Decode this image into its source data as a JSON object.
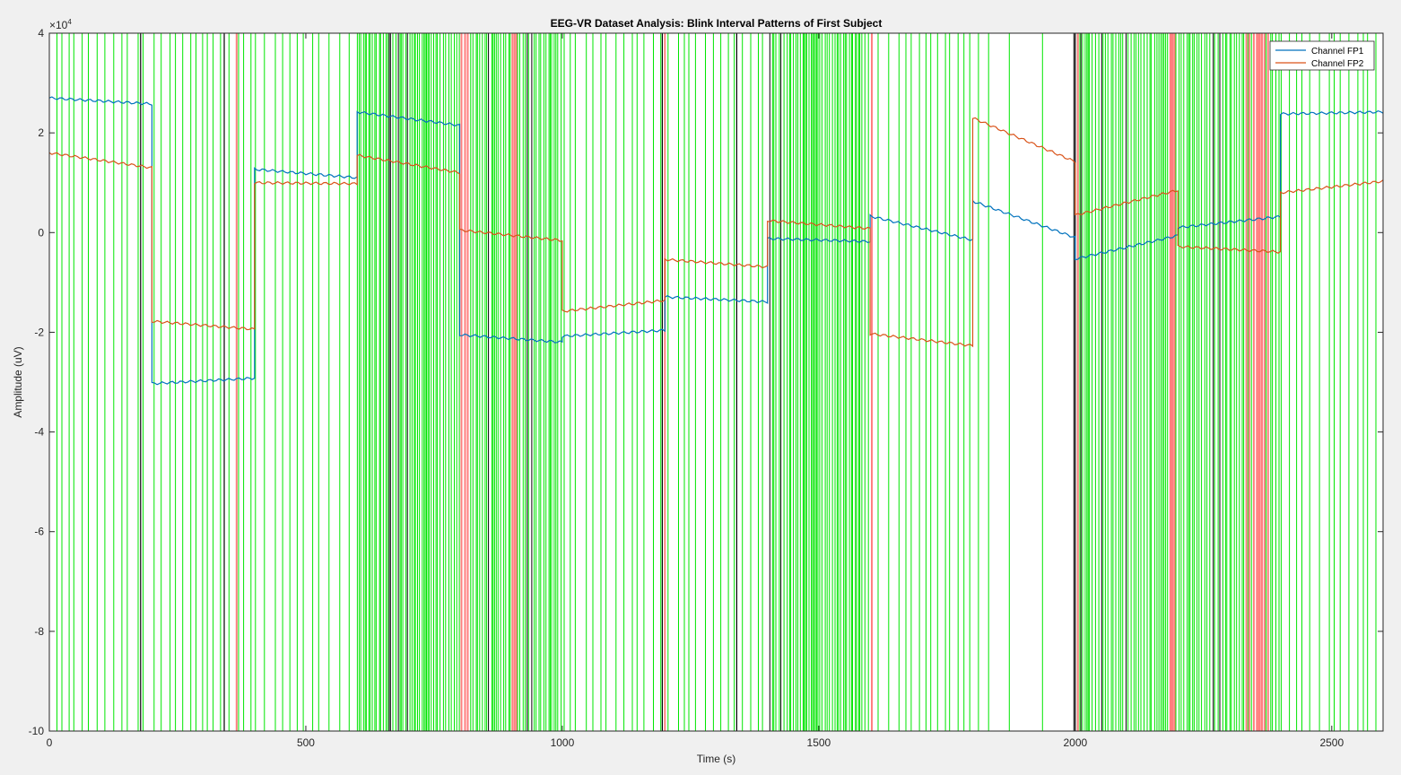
{
  "chart_data": {
    "type": "line",
    "title": "EEG-VR Dataset Analysis: Blink Interval Patterns of First Subject",
    "xlabel": "Time (s)",
    "ylabel": "Amplitude (uV)",
    "exponent_label": "×10",
    "exponent_power": "4",
    "xlim": [
      0,
      2600
    ],
    "ylim": [
      -100000,
      40000
    ],
    "x_ticks": [
      0,
      500,
      1000,
      1500,
      2000,
      2500
    ],
    "y_ticks": [
      -100000,
      -80000,
      -60000,
      -40000,
      -20000,
      0,
      20000,
      40000
    ],
    "y_tick_labels": [
      "-10",
      "-8",
      "-6",
      "-4",
      "-2",
      "0",
      "2",
      "4"
    ],
    "x_tick_labels": [
      "0",
      "500",
      "1000",
      "1500",
      "2000",
      "2500"
    ],
    "grid": false,
    "legend_position": "top-right",
    "colors": {
      "fp1": "#0072bd",
      "fp2": "#d95319",
      "marker_green": "#00e600",
      "marker_red": "#ff7f7f",
      "marker_black": "#000000",
      "background": "#ffffff",
      "figure": "#f0f0f0"
    },
    "series": [
      {
        "name": "Channel FP1",
        "segments": [
          {
            "x": [
              0,
              200
            ],
            "y": [
              27000,
              25800
            ]
          },
          {
            "x": [
              200,
              400
            ],
            "y": [
              -30300,
              -29200
            ]
          },
          {
            "x": [
              400,
              600
            ],
            "y": [
              12700,
              11000
            ]
          },
          {
            "x": [
              600,
              800
            ],
            "y": [
              24200,
              21500
            ]
          },
          {
            "x": [
              800,
              1000
            ],
            "y": [
              -20500,
              -22000
            ]
          },
          {
            "x": [
              1000,
              1200
            ],
            "y": [
              -20800,
              -19600
            ]
          },
          {
            "x": [
              1200,
              1400
            ],
            "y": [
              -12900,
              -13900
            ]
          },
          {
            "x": [
              1400,
              1600
            ],
            "y": [
              -1200,
              -1800
            ]
          },
          {
            "x": [
              1600,
              1800
            ],
            "y": [
              3300,
              -1500
            ]
          },
          {
            "x": [
              1800,
              2000
            ],
            "y": [
              6300,
              -1000
            ]
          },
          {
            "x": [
              2000,
              2200
            ],
            "y": [
              -5300,
              -600
            ]
          },
          {
            "x": [
              2200,
              2400
            ],
            "y": [
              1000,
              3200
            ]
          },
          {
            "x": [
              2400,
              2600
            ],
            "y": [
              23800,
              24200
            ]
          }
        ]
      },
      {
        "name": "Channel FP2",
        "segments": [
          {
            "x": [
              0,
              200
            ],
            "y": [
              16000,
              13000
            ]
          },
          {
            "x": [
              200,
              400
            ],
            "y": [
              -17800,
              -19400
            ]
          },
          {
            "x": [
              400,
              600
            ],
            "y": [
              10000,
              9800
            ]
          },
          {
            "x": [
              600,
              800
            ],
            "y": [
              15500,
              12000
            ]
          },
          {
            "x": [
              800,
              1000
            ],
            "y": [
              500,
              -1600
            ]
          },
          {
            "x": [
              1000,
              1200
            ],
            "y": [
              -15800,
              -13600
            ]
          },
          {
            "x": [
              1200,
              1400
            ],
            "y": [
              -5400,
              -6900
            ]
          },
          {
            "x": [
              1400,
              1600
            ],
            "y": [
              2400,
              800
            ]
          },
          {
            "x": [
              1600,
              1800
            ],
            "y": [
              -20300,
              -22700
            ]
          },
          {
            "x": [
              1800,
              2000
            ],
            "y": [
              23000,
              14200
            ]
          },
          {
            "x": [
              2000,
              2200
            ],
            "y": [
              3500,
              8500
            ]
          },
          {
            "x": [
              2200,
              2400
            ],
            "y": [
              -2800,
              -3900
            ]
          },
          {
            "x": [
              2400,
              2600
            ],
            "y": [
              8000,
              10300
            ]
          }
        ]
      }
    ]
  }
}
